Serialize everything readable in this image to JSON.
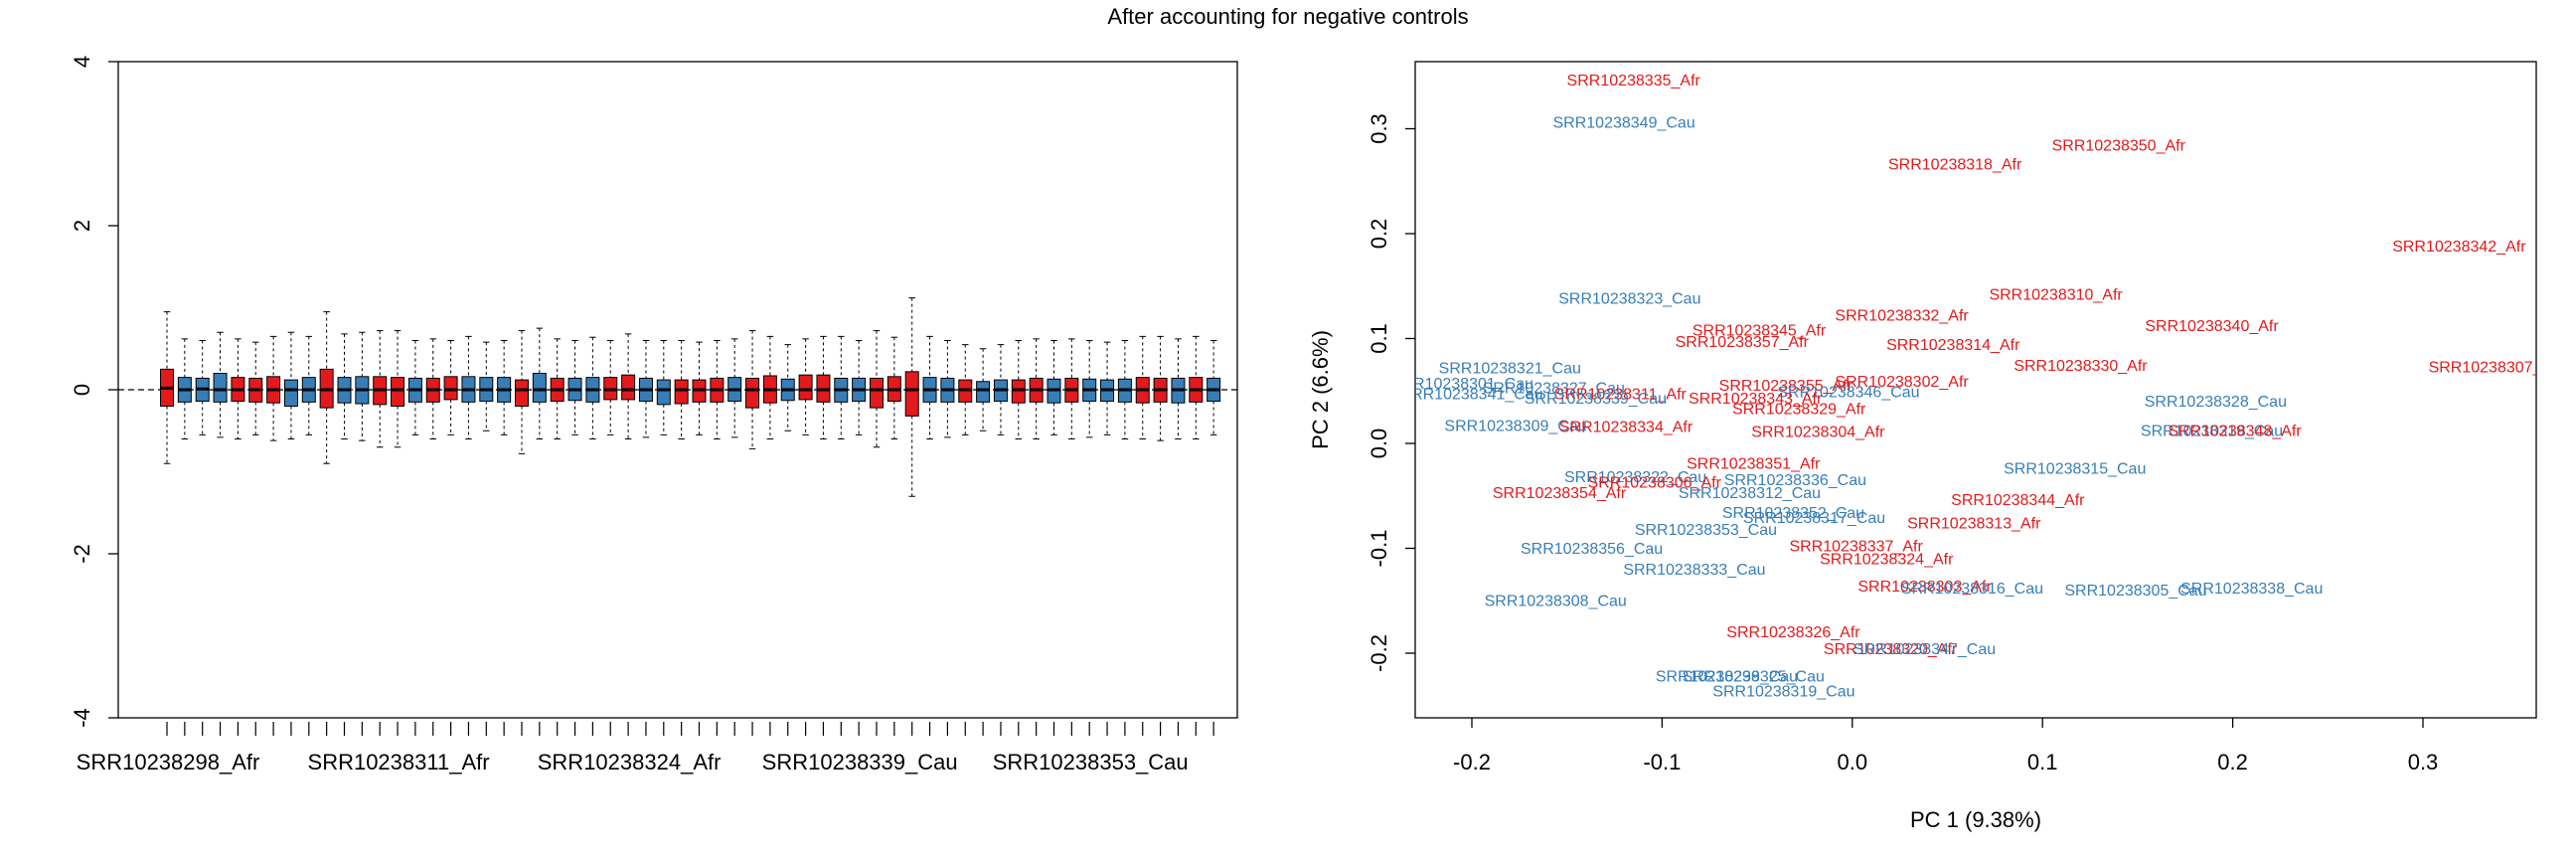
{
  "title": "After accounting for negative controls",
  "colors": {
    "afr": "#e31a1c",
    "cau": "#377eb8",
    "axis": "#000000"
  },
  "chart_data": [
    {
      "type": "boxplot",
      "ylim": [
        -4,
        4
      ],
      "y_ticks": [
        -4,
        -2,
        0,
        2,
        4
      ],
      "reference_line": 0,
      "n_boxes": 60,
      "x_tick_labels": [
        "SRR10238298_Afr",
        "SRR10238311_Afr",
        "SRR10238324_Afr",
        "SRR10238339_Cau",
        "SRR10238353_Cau"
      ],
      "x_tick_label_box_index": [
        1,
        14,
        27,
        40,
        53
      ],
      "groups": [
        "Afr",
        "Cau",
        "Cau",
        "Cau",
        "Afr",
        "Afr",
        "Afr",
        "Cau",
        "Cau",
        "Afr",
        "Cau",
        "Cau",
        "Afr",
        "Afr",
        "Cau",
        "Afr",
        "Afr",
        "Cau",
        "Cau",
        "Cau",
        "Afr",
        "Cau",
        "Afr",
        "Cau",
        "Cau",
        "Afr",
        "Afr",
        "Cau",
        "Cau",
        "Afr",
        "Afr",
        "Afr",
        "Cau",
        "Afr",
        "Afr",
        "Cau",
        "Afr",
        "Afr",
        "Cau",
        "Cau",
        "Afr",
        "Afr",
        "Afr",
        "Cau",
        "Cau",
        "Afr",
        "Cau",
        "Cau",
        "Afr",
        "Afr",
        "Cau",
        "Afr",
        "Cau",
        "Cau",
        "Cau",
        "Afr",
        "Afr",
        "Cau",
        "Afr",
        "Cau"
      ],
      "stats": [
        [
          -0.9,
          -0.2,
          0.02,
          0.25,
          0.95
        ],
        [
          -0.6,
          -0.15,
          0.0,
          0.15,
          0.62
        ],
        [
          -0.55,
          -0.14,
          0.01,
          0.14,
          0.6
        ],
        [
          -0.58,
          -0.15,
          0.0,
          0.2,
          0.7
        ],
        [
          -0.6,
          -0.14,
          0.0,
          0.15,
          0.62
        ],
        [
          -0.55,
          -0.15,
          0.0,
          0.14,
          0.58
        ],
        [
          -0.62,
          -0.16,
          0.0,
          0.16,
          0.65
        ],
        [
          -0.6,
          -0.2,
          0.0,
          0.12,
          0.7
        ],
        [
          -0.55,
          -0.15,
          0.0,
          0.15,
          0.65
        ],
        [
          -0.9,
          -0.22,
          0.0,
          0.25,
          0.95
        ],
        [
          -0.6,
          -0.16,
          0.0,
          0.15,
          0.68
        ],
        [
          -0.62,
          -0.17,
          0.0,
          0.16,
          0.7
        ],
        [
          -0.7,
          -0.18,
          0.0,
          0.16,
          0.72
        ],
        [
          -0.7,
          -0.2,
          0.0,
          0.15,
          0.72
        ],
        [
          -0.55,
          -0.15,
          0.0,
          0.14,
          0.6
        ],
        [
          -0.6,
          -0.15,
          0.0,
          0.14,
          0.62
        ],
        [
          -0.55,
          -0.12,
          0.0,
          0.16,
          0.6
        ],
        [
          -0.6,
          -0.15,
          0.0,
          0.16,
          0.65
        ],
        [
          -0.5,
          -0.14,
          0.0,
          0.15,
          0.58
        ],
        [
          -0.55,
          -0.15,
          0.0,
          0.15,
          0.6
        ],
        [
          -0.78,
          -0.2,
          0.0,
          0.12,
          0.72
        ],
        [
          -0.6,
          -0.15,
          0.0,
          0.2,
          0.75
        ],
        [
          -0.6,
          -0.14,
          0.0,
          0.14,
          0.62
        ],
        [
          -0.55,
          -0.13,
          0.0,
          0.14,
          0.6
        ],
        [
          -0.6,
          -0.15,
          0.0,
          0.15,
          0.64
        ],
        [
          -0.55,
          -0.12,
          0.0,
          0.15,
          0.6
        ],
        [
          -0.6,
          -0.12,
          0.0,
          0.18,
          0.68
        ],
        [
          -0.58,
          -0.14,
          0.0,
          0.14,
          0.6
        ],
        [
          -0.55,
          -0.18,
          0.0,
          0.12,
          0.6
        ],
        [
          -0.6,
          -0.17,
          0.0,
          0.12,
          0.6
        ],
        [
          -0.55,
          -0.15,
          0.0,
          0.12,
          0.58
        ],
        [
          -0.6,
          -0.15,
          0.0,
          0.14,
          0.6
        ],
        [
          -0.58,
          -0.14,
          0.0,
          0.15,
          0.62
        ],
        [
          -0.72,
          -0.22,
          0.0,
          0.14,
          0.72
        ],
        [
          -0.6,
          -0.16,
          0.0,
          0.17,
          0.65
        ],
        [
          -0.5,
          -0.13,
          0.0,
          0.13,
          0.55
        ],
        [
          -0.55,
          -0.12,
          0.0,
          0.18,
          0.62
        ],
        [
          -0.6,
          -0.15,
          0.0,
          0.18,
          0.65
        ],
        [
          -0.6,
          -0.15,
          0.0,
          0.14,
          0.65
        ],
        [
          -0.55,
          -0.14,
          0.0,
          0.14,
          0.6
        ],
        [
          -0.7,
          -0.22,
          0.0,
          0.14,
          0.72
        ],
        [
          -0.6,
          -0.14,
          0.0,
          0.16,
          0.64
        ],
        [
          -1.3,
          -0.32,
          0.0,
          0.22,
          1.12
        ],
        [
          -0.6,
          -0.15,
          0.0,
          0.15,
          0.65
        ],
        [
          -0.58,
          -0.15,
          0.0,
          0.14,
          0.6
        ],
        [
          -0.55,
          -0.15,
          0.0,
          0.12,
          0.55
        ],
        [
          -0.5,
          -0.15,
          0.0,
          0.1,
          0.5
        ],
        [
          -0.55,
          -0.14,
          0.0,
          0.12,
          0.55
        ],
        [
          -0.6,
          -0.16,
          0.0,
          0.12,
          0.6
        ],
        [
          -0.6,
          -0.15,
          0.0,
          0.14,
          0.62
        ],
        [
          -0.55,
          -0.16,
          0.0,
          0.13,
          0.6
        ],
        [
          -0.6,
          -0.15,
          0.0,
          0.14,
          0.62
        ],
        [
          -0.58,
          -0.14,
          0.0,
          0.13,
          0.6
        ],
        [
          -0.55,
          -0.14,
          0.0,
          0.12,
          0.58
        ],
        [
          -0.6,
          -0.15,
          0.0,
          0.13,
          0.6
        ],
        [
          -0.6,
          -0.16,
          0.0,
          0.15,
          0.65
        ],
        [
          -0.62,
          -0.15,
          0.0,
          0.14,
          0.65
        ],
        [
          -0.6,
          -0.16,
          0.0,
          0.14,
          0.62
        ],
        [
          -0.6,
          -0.15,
          0.0,
          0.15,
          0.65
        ],
        [
          -0.55,
          -0.14,
          0.0,
          0.14,
          0.6
        ]
      ]
    },
    {
      "type": "scatter",
      "xlabel": "PC 1 (9.38%)",
      "ylabel": "PC 2 (6.6%)",
      "xlim": [
        -0.23,
        0.36
      ],
      "ylim": [
        -0.26,
        0.36
      ],
      "x_ticks": [
        -0.2,
        -0.1,
        0.0,
        0.1,
        0.2,
        0.3
      ],
      "x_tick_labels": [
        "-0.2",
        "-0.1",
        "0.0",
        "0.1",
        "0.2",
        "0.3"
      ],
      "y_ticks": [
        -0.2,
        -0.1,
        0.0,
        0.1,
        0.2,
        0.3
      ],
      "y_tick_labels": [
        "-0.2",
        "-0.1",
        "0.0",
        "0.1",
        "0.2",
        "0.3"
      ],
      "points": [
        {
          "label": "SRR10238335_Afr",
          "group": "Afr",
          "x": -0.115,
          "y": 0.345
        },
        {
          "label": "SRR10238349_Cau",
          "group": "Cau",
          "x": -0.12,
          "y": 0.305
        },
        {
          "label": "SRR10238318_Afr",
          "group": "Afr",
          "x": 0.054,
          "y": 0.265
        },
        {
          "label": "SRR10238350_Afr",
          "group": "Afr",
          "x": 0.14,
          "y": 0.283
        },
        {
          "label": "SRR10238342_Afr",
          "group": "Afr",
          "x": 0.319,
          "y": 0.187
        },
        {
          "label": "SRR10238323_Cau",
          "group": "Cau",
          "x": -0.117,
          "y": 0.137
        },
        {
          "label": "SRR10238310_Afr",
          "group": "Afr",
          "x": 0.107,
          "y": 0.141
        },
        {
          "label": "SRR10238332_Afr",
          "group": "Afr",
          "x": 0.026,
          "y": 0.121
        },
        {
          "label": "SRR10238345_Afr",
          "group": "Afr",
          "x": -0.049,
          "y": 0.107
        },
        {
          "label": "SRR10238340_Afr",
          "group": "Afr",
          "x": 0.189,
          "y": 0.111
        },
        {
          "label": "SRR10238357_Afr",
          "group": "Afr",
          "x": -0.058,
          "y": 0.096
        },
        {
          "label": "SRR10238314_Afr",
          "group": "Afr",
          "x": 0.053,
          "y": 0.093
        },
        {
          "label": "SRR10238307_Afr",
          "group": "Afr",
          "x": 0.338,
          "y": 0.072
        },
        {
          "label": "SRR10238321_Cau",
          "group": "Cau",
          "x": -0.18,
          "y": 0.071
        },
        {
          "label": "SRR10238330_Afr",
          "group": "Afr",
          "x": 0.12,
          "y": 0.073
        },
        {
          "label": "SRR10238302_Afr",
          "group": "Afr",
          "x": 0.026,
          "y": 0.058
        },
        {
          "label": "SRR10238355_Afr",
          "group": "Afr",
          "x": -0.035,
          "y": 0.054
        },
        {
          "label": "SRR10238346_Cau",
          "group": "Cau",
          "x": -0.002,
          "y": 0.048
        },
        {
          "label": "SRR10238301_Cau",
          "group": "Cau",
          "x": -0.205,
          "y": 0.056
        },
        {
          "label": "SRR10238327_Cau",
          "group": "Cau",
          "x": -0.157,
          "y": 0.052
        },
        {
          "label": "SRR10238341_Cau",
          "group": "Cau",
          "x": -0.2,
          "y": 0.046
        },
        {
          "label": "SRR10238311_Afr",
          "group": "Afr",
          "x": -0.122,
          "y": 0.046
        },
        {
          "label": "SRR10238339_Cau",
          "group": "Cau",
          "x": -0.135,
          "y": 0.042
        },
        {
          "label": "SRR10238343_Afr",
          "group": "Afr",
          "x": -0.051,
          "y": 0.042
        },
        {
          "label": "SRR10238328_Cau",
          "group": "Cau",
          "x": 0.191,
          "y": 0.039
        },
        {
          "label": "SRR10238329_Afr",
          "group": "Afr",
          "x": -0.028,
          "y": 0.032
        },
        {
          "label": "SRR10238309_Cau",
          "group": "Cau",
          "x": -0.177,
          "y": 0.016
        },
        {
          "label": "SRR10238334_Afr",
          "group": "Afr",
          "x": -0.119,
          "y": 0.015
        },
        {
          "label": "SRR10238304_Afr",
          "group": "Afr",
          "x": -0.018,
          "y": 0.01
        },
        {
          "label": "SRR10238319_Cau",
          "group": "Cau",
          "x": 0.189,
          "y": 0.011
        },
        {
          "label": "SRR10238348_Afr",
          "group": "Afr",
          "x": 0.201,
          "y": 0.011
        },
        {
          "label": "SRR10238351_Afr",
          "group": "Afr",
          "x": -0.052,
          "y": -0.02
        },
        {
          "label": "SRR10238315_Cau",
          "group": "Cau",
          "x": 0.117,
          "y": -0.025
        },
        {
          "label": "SRR10238322_Cau",
          "group": "Cau",
          "x": -0.114,
          "y": -0.033
        },
        {
          "label": "SRR10238336_Cau",
          "group": "Cau",
          "x": -0.03,
          "y": -0.036
        },
        {
          "label": "SRR10238306_Afr",
          "group": "Afr",
          "x": -0.104,
          "y": -0.038
        },
        {
          "label": "SRR10238354_Afr",
          "group": "Afr",
          "x": -0.154,
          "y": -0.048
        },
        {
          "label": "SRR10238312_Cau",
          "group": "Cau",
          "x": -0.054,
          "y": -0.048
        },
        {
          "label": "SRR10238344_Afr",
          "group": "Afr",
          "x": 0.087,
          "y": -0.055
        },
        {
          "label": "SRR10238352_Cau",
          "group": "Cau",
          "x": -0.031,
          "y": -0.067
        },
        {
          "label": "SRR10238317_Cau",
          "group": "Cau",
          "x": -0.02,
          "y": -0.072
        },
        {
          "label": "SRR10238313_Afr",
          "group": "Afr",
          "x": 0.064,
          "y": -0.077
        },
        {
          "label": "SRR10238353_Cau",
          "group": "Cau",
          "x": -0.077,
          "y": -0.083
        },
        {
          "label": "SRR10238337_Afr",
          "group": "Afr",
          "x": 0.002,
          "y": -0.099
        },
        {
          "label": "SRR10238356_Cau",
          "group": "Cau",
          "x": -0.137,
          "y": -0.101
        },
        {
          "label": "SRR10238324_Afr",
          "group": "Afr",
          "x": 0.018,
          "y": -0.111
        },
        {
          "label": "SRR10238333_Cau",
          "group": "Cau",
          "x": -0.083,
          "y": -0.121
        },
        {
          "label": "SRR10238303_Afr",
          "group": "Afr",
          "x": 0.038,
          "y": -0.137
        },
        {
          "label": "SRR10238316_Cau",
          "group": "Cau",
          "x": 0.063,
          "y": -0.139
        },
        {
          "label": "SRR10238305_Cau",
          "group": "Cau",
          "x": 0.149,
          "y": -0.141
        },
        {
          "label": "SRR10238338_Cau",
          "group": "Cau",
          "x": 0.21,
          "y": -0.139
        },
        {
          "label": "SRR10238308_Cau",
          "group": "Cau",
          "x": -0.156,
          "y": -0.151
        },
        {
          "label": "SRR10238326_Afr",
          "group": "Afr",
          "x": -0.031,
          "y": -0.181
        },
        {
          "label": "SRR10238320_Afr",
          "group": "Afr",
          "x": 0.02,
          "y": -0.197
        },
        {
          "label": "SRR10238347_Cau",
          "group": "Cau",
          "x": 0.038,
          "y": -0.197
        },
        {
          "label": "SRR10238299_Cau",
          "group": "Cau",
          "x": -0.066,
          "y": -0.223
        },
        {
          "label": "SRR10238325_Cau",
          "group": "Cau",
          "x": -0.052,
          "y": -0.223
        },
        {
          "label": "SRR10238319_Cau",
          "group": "Cau",
          "x": -0.036,
          "y": -0.237
        }
      ]
    }
  ]
}
